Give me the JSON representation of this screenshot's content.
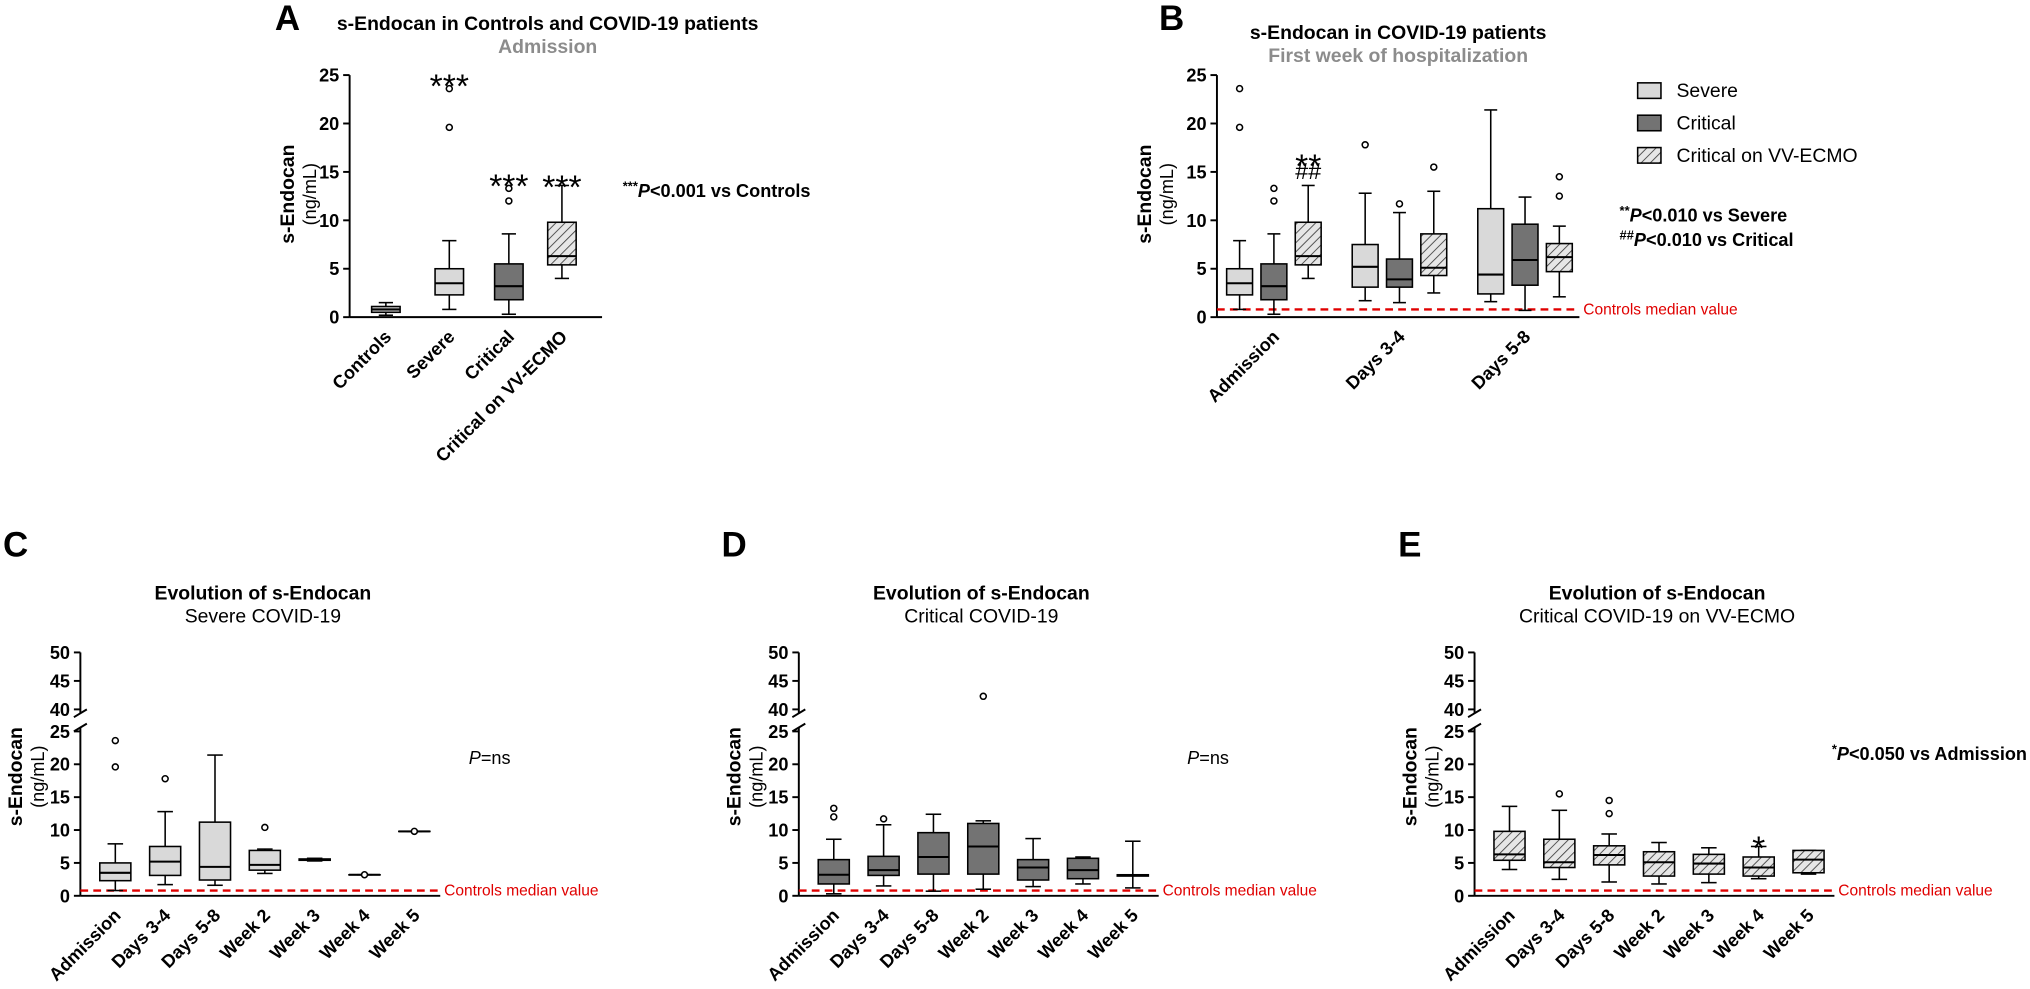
{
  "chart_data": [
    {
      "type": "box",
      "letter": "A",
      "title": "s-Endocan in Controls and COVID-19 patients",
      "subtitle": "Admission",
      "ylabel": "s-Endocan",
      "ylabel_unit": "(ng/mL)",
      "categories": [
        "Controls",
        "Severe",
        "Critical",
        "Critical on VV-ECMO"
      ],
      "ylim": [
        0,
        25
      ],
      "yticks": [
        0,
        5,
        10,
        15,
        20,
        25
      ],
      "series": [
        {
          "fill": [
            "#d9d9d9",
            "#d9d9d9",
            "#737373",
            "hatch"
          ],
          "min": [
            0.2,
            0.8,
            0.3,
            4.0
          ],
          "q1": [
            0.5,
            2.3,
            1.8,
            5.4
          ],
          "median": [
            0.8,
            3.5,
            3.2,
            6.3
          ],
          "q3": [
            1.1,
            5.0,
            5.5,
            9.8
          ],
          "max": [
            1.5,
            7.9,
            8.6,
            13.6
          ],
          "outliers": [
            [],
            [
              19.6,
              23.6
            ],
            [
              12.0,
              13.3
            ],
            []
          ]
        }
      ],
      "annotations": [
        {
          "text": "***",
          "category": 1,
          "series": 0
        },
        {
          "text": "***",
          "category": 2,
          "series": 0
        },
        {
          "text": "***",
          "category": 3,
          "series": 0
        }
      ],
      "notes": [
        {
          "sup": "***",
          "italic": "P",
          "text": "<0.001 vs Controls"
        }
      ]
    },
    {
      "type": "box",
      "letter": "B",
      "title": "s-Endocan in COVID-19 patients",
      "subtitle": "First week of hospitalization",
      "ylabel": "s-Endocan",
      "ylabel_unit": "(ng/mL)",
      "categories": [
        "Admission",
        "Days 3-4",
        "Days 5-8"
      ],
      "ylim": [
        0,
        25
      ],
      "yticks": [
        0,
        5,
        10,
        15,
        20,
        25
      ],
      "legend": "top-right",
      "series": [
        {
          "name": "Severe",
          "fill": "#d9d9d9",
          "min": [
            0.8,
            1.7,
            1.6
          ],
          "q1": [
            2.3,
            3.1,
            2.4
          ],
          "median": [
            3.5,
            5.2,
            4.4
          ],
          "q3": [
            5.0,
            7.5,
            11.2
          ],
          "max": [
            7.9,
            12.8,
            21.4
          ],
          "outliers": [
            [
              19.6,
              23.6
            ],
            [
              17.8
            ],
            []
          ]
        },
        {
          "name": "Critical",
          "fill": "#737373",
          "min": [
            0.3,
            1.5,
            0.7
          ],
          "q1": [
            1.8,
            3.1,
            3.3
          ],
          "median": [
            3.2,
            3.9,
            5.9
          ],
          "q3": [
            5.5,
            6.0,
            9.6
          ],
          "max": [
            8.6,
            10.8,
            12.4
          ],
          "outliers": [
            [
              12.0,
              13.3
            ],
            [
              11.7
            ],
            []
          ]
        },
        {
          "name": "Critical on VV-ECMO",
          "fill": "hatch",
          "min": [
            4.0,
            2.5,
            2.1
          ],
          "q1": [
            5.4,
            4.3,
            4.7
          ],
          "median": [
            6.3,
            5.1,
            6.2
          ],
          "q3": [
            9.8,
            8.6,
            7.6
          ],
          "max": [
            13.6,
            13.0,
            9.4
          ],
          "outliers": [
            [],
            [
              15.5
            ],
            [
              12.5,
              14.5
            ]
          ]
        }
      ],
      "annotations": [
        {
          "text": "**",
          "category": 0,
          "series": 2
        },
        {
          "text": "##",
          "category": 0,
          "series": 2
        }
      ],
      "ref_line": {
        "value": 0.8,
        "label": "Controls median value",
        "color": "#e00000"
      },
      "notes": [
        {
          "sup": "**",
          "italic": "P",
          "text": "<0.010 vs Severe"
        },
        {
          "sup": "##",
          "italic": "P",
          "text": "<0.010 vs Critical"
        }
      ]
    },
    {
      "type": "box",
      "letter": "C",
      "title": "Evolution of s-Endocan",
      "subtitle": "Severe COVID-19",
      "ylabel": "s-Endocan",
      "ylabel_unit": "(ng/mL)",
      "categories": [
        "Admission",
        "Days 3-4",
        "Days 5-8",
        "Week 2",
        "Week 3",
        "Week 4",
        "Week 5"
      ],
      "ylim": [
        0,
        50
      ],
      "axis_break": [
        25,
        40
      ],
      "yticks": [
        0,
        5,
        10,
        15,
        20,
        25,
        40,
        45,
        50
      ],
      "series": [
        {
          "fill": "#d9d9d9",
          "min": [
            0.8,
            1.7,
            1.6,
            3.4,
            5.3,
            3.2,
            9.8
          ],
          "q1": [
            2.3,
            3.1,
            2.4,
            3.9,
            5.4,
            3.2,
            9.8
          ],
          "median": [
            3.5,
            5.2,
            4.4,
            4.7,
            5.5,
            3.2,
            9.8
          ],
          "q3": [
            5.0,
            7.5,
            11.2,
            6.9,
            5.6,
            3.2,
            9.8
          ],
          "max": [
            7.9,
            12.8,
            21.4,
            7.1,
            5.7,
            3.2,
            9.8
          ],
          "outliers": [
            [
              19.6,
              23.6
            ],
            [
              17.8
            ],
            [],
            [
              10.4
            ],
            [],
            [
              3.2
            ],
            [
              9.8
            ]
          ]
        }
      ],
      "ref_line": {
        "value": 0.8,
        "label": "Controls median value",
        "color": "#e00000"
      },
      "notes": [
        {
          "italic": "P",
          "text": "=ns"
        }
      ]
    },
    {
      "type": "box",
      "letter": "D",
      "title": "Evolution of s-Endocan",
      "subtitle": "Critical COVID-19",
      "ylabel": "s-Endocan",
      "ylabel_unit": "(ng/mL)",
      "categories": [
        "Admission",
        "Days 3-4",
        "Days 5-8",
        "Week 2",
        "Week 3",
        "Week 4",
        "Week 5"
      ],
      "ylim": [
        0,
        50
      ],
      "axis_break": [
        25,
        40
      ],
      "yticks": [
        0,
        5,
        10,
        15,
        20,
        25,
        40,
        45,
        50
      ],
      "series": [
        {
          "fill": "#737373",
          "min": [
            0.3,
            1.5,
            0.7,
            1.0,
            1.4,
            1.8,
            1.2
          ],
          "q1": [
            1.8,
            3.1,
            3.3,
            3.3,
            2.4,
            2.6,
            3.0
          ],
          "median": [
            3.2,
            3.9,
            5.9,
            7.5,
            4.3,
            3.9,
            3.1
          ],
          "q3": [
            5.5,
            6.0,
            9.6,
            11.0,
            5.5,
            5.7,
            3.2
          ],
          "max": [
            8.6,
            10.8,
            12.4,
            11.4,
            8.7,
            5.9,
            8.3
          ],
          "outliers": [
            [
              12.0,
              13.3
            ],
            [
              11.7
            ],
            [],
            [
              42.3
            ],
            [],
            [],
            []
          ]
        }
      ],
      "ref_line": {
        "value": 0.8,
        "label": "Controls median value",
        "color": "#e00000"
      },
      "notes": [
        {
          "italic": "P",
          "text": "=ns"
        }
      ]
    },
    {
      "type": "box",
      "letter": "E",
      "title": "Evolution of s-Endocan",
      "subtitle": "Critical COVID-19 on VV-ECMO",
      "ylabel": "s-Endocan",
      "ylabel_unit": "(ng/mL)",
      "categories": [
        "Admission",
        "Days 3-4",
        "Days 5-8",
        "Week 2",
        "Week 3",
        "Week 4",
        "Week 5"
      ],
      "ylim": [
        0,
        50
      ],
      "axis_break": [
        25,
        40
      ],
      "yticks": [
        0,
        5,
        10,
        15,
        20,
        25,
        40,
        45,
        50
      ],
      "series": [
        {
          "fill": "hatch",
          "min": [
            4.0,
            2.5,
            2.1,
            1.8,
            2.0,
            2.6,
            3.3
          ],
          "q1": [
            5.4,
            4.3,
            4.7,
            3.0,
            3.3,
            3.0,
            3.5
          ],
          "median": [
            6.3,
            5.1,
            6.2,
            5.1,
            4.9,
            4.3,
            5.5
          ],
          "q3": [
            9.8,
            8.6,
            7.6,
            6.7,
            6.3,
            5.9,
            6.9
          ],
          "max": [
            13.6,
            13.0,
            9.4,
            8.1,
            7.3,
            7.5,
            6.9
          ],
          "outliers": [
            [],
            [
              15.5
            ],
            [
              12.5,
              14.5
            ],
            [],
            [],
            [],
            []
          ]
        }
      ],
      "annotations": [
        {
          "text": "*",
          "category": 5,
          "series": 0
        }
      ],
      "ref_line": {
        "value": 0.8,
        "label": "Controls median value",
        "color": "#e00000"
      },
      "notes": [
        {
          "sup": "*",
          "italic": "P",
          "text": "<0.050 vs Admission"
        }
      ]
    }
  ]
}
